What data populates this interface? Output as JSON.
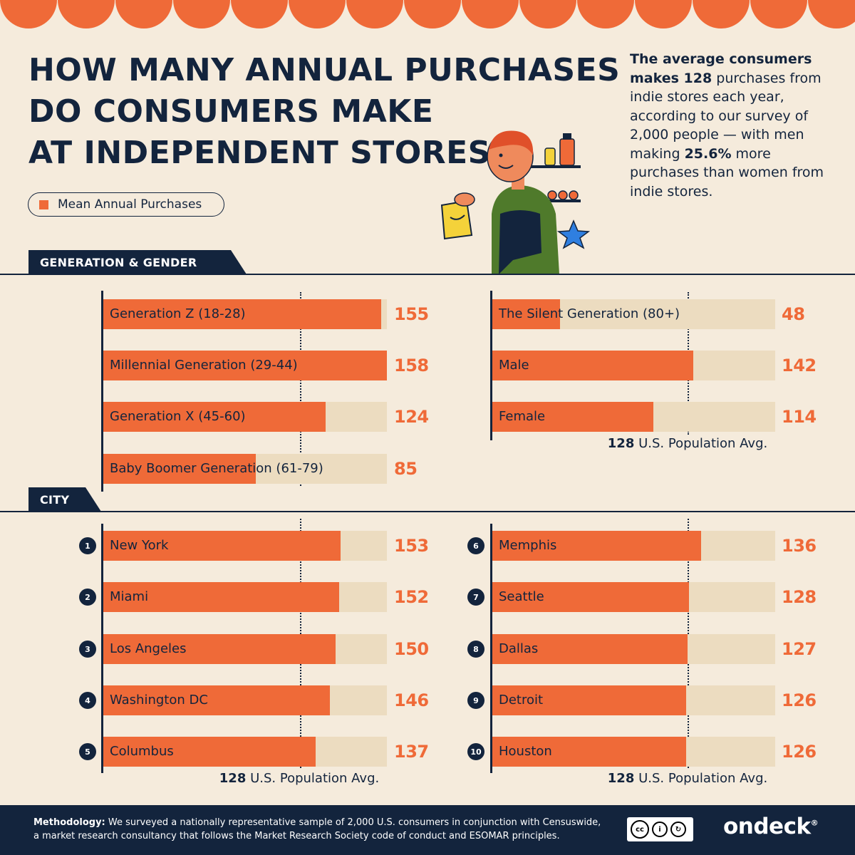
{
  "header": {
    "title_lines": [
      "HOW MANY ANNUAL PURCHASES",
      "DO CONSUMERS MAKE",
      "AT INDEPENDENT STORES?"
    ],
    "intro_bold": "The average consumers makes 128",
    "intro_part2": " purchases from indie stores each year, according to our survey of 2,000 people — with men making ",
    "intro_bold2": "25.6%",
    "intro_part3": " more purchases than women from indie stores."
  },
  "legend": {
    "label": "Mean Annual Purchases",
    "color": "#ef6a38"
  },
  "sections": {
    "generation_gender": "GENERATION & GENDER",
    "city": "CITY"
  },
  "average": {
    "value": "128",
    "label": "U.S. Population Avg."
  },
  "colors": {
    "bar": "#ef6a38",
    "track": "#ecdcc0",
    "navy": "#13243d",
    "background": "#f5ebdc"
  },
  "chart_data": [
    {
      "type": "bar",
      "categories": [
        "Generation Z (18-28)",
        "Millennial Generation (29-44)",
        "Generation X (45-60)",
        "Baby Boomer Generation (61-79)"
      ],
      "values": [
        155,
        158,
        124,
        85
      ],
      "reference_line": 128,
      "xlim": [
        0,
        158
      ]
    },
    {
      "type": "bar",
      "categories": [
        "The Silent Generation (80+)",
        "Male",
        "Female"
      ],
      "values": [
        48,
        142,
        114
      ],
      "reference_line": 128,
      "xlim": [
        0,
        200
      ]
    },
    {
      "type": "bar",
      "categories": [
        "New York",
        "Miami",
        "Los Angeles",
        "Washington DC",
        "Columbus"
      ],
      "ranks": [
        "1",
        "2",
        "3",
        "4",
        "5"
      ],
      "values": [
        153,
        152,
        150,
        146,
        137
      ],
      "reference_line": 128,
      "xlim": [
        0,
        183
      ]
    },
    {
      "type": "bar",
      "categories": [
        "Memphis",
        "Seattle",
        "Dallas",
        "Detroit",
        "Houston"
      ],
      "ranks": [
        "6",
        "7",
        "8",
        "9",
        "10"
      ],
      "values": [
        136,
        128,
        127,
        126,
        126
      ],
      "reference_line": 128,
      "xlim": [
        0,
        184
      ]
    }
  ],
  "footer": {
    "method_label": "Methodology:",
    "method_text": " We surveyed a nationally representative sample of 2,000 U.S. consumers in conjunction with Censuswide, a market research consultancy that follows the Market Research Society code of conduct and ESOMAR principles.",
    "license_icons": [
      "cc",
      "by",
      "sa"
    ],
    "license_by": "BY",
    "license_sa": "SA",
    "brand": "ondeck",
    "brand_mark": "®"
  }
}
